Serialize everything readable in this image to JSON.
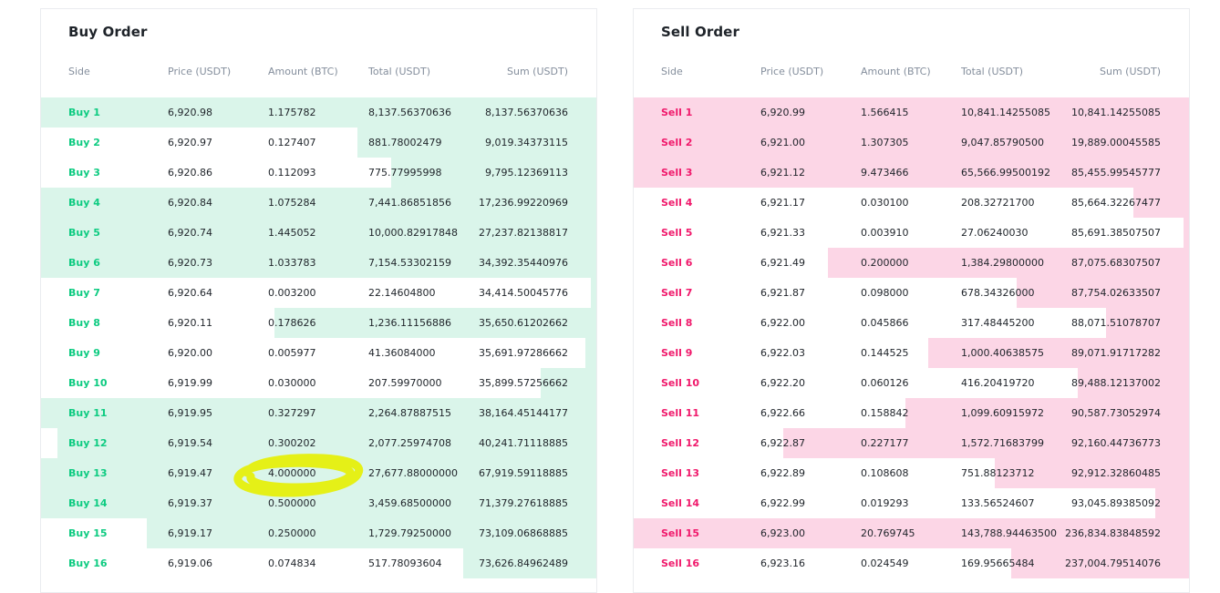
{
  "buy": {
    "title": "Buy Order",
    "headers": {
      "side": "Side",
      "price": "Price (USDT)",
      "amount": "Amount (BTC)",
      "total": "Total (USDT)",
      "sum": "Sum (USDT)"
    },
    "rows": [
      {
        "side": "Buy 1",
        "price": "6,920.98",
        "amount": "1.175782",
        "total": "8,137.56370636",
        "sum": "8,137.56370636",
        "depth": 1.0
      },
      {
        "side": "Buy 2",
        "price": "6,920.97",
        "amount": "0.127407",
        "total": "881.78002479",
        "sum": "9,019.34373115",
        "depth": 0.43
      },
      {
        "side": "Buy 3",
        "price": "6,920.86",
        "amount": "0.112093",
        "total": "775.77995998",
        "sum": "9,795.12369113",
        "depth": 0.37
      },
      {
        "side": "Buy 4",
        "price": "6,920.84",
        "amount": "1.075284",
        "total": "7,441.86851856",
        "sum": "17,236.99220969",
        "depth": 1.0
      },
      {
        "side": "Buy 5",
        "price": "6,920.74",
        "amount": "1.445052",
        "total": "10,000.82917848",
        "sum": "27,237.82138817",
        "depth": 1.0
      },
      {
        "side": "Buy 6",
        "price": "6,920.73",
        "amount": "1.033783",
        "total": "7,154.53302159",
        "sum": "34,392.35440976",
        "depth": 1.0
      },
      {
        "side": "Buy 7",
        "price": "6,920.64",
        "amount": "0.003200",
        "total": "22.14604800",
        "sum": "34,414.50045776",
        "depth": 0.01
      },
      {
        "side": "Buy 8",
        "price": "6,920.11",
        "amount": "0.178626",
        "total": "1,236.11156886",
        "sum": "35,650.61202662",
        "depth": 0.58
      },
      {
        "side": "Buy 9",
        "price": "6,920.00",
        "amount": "0.005977",
        "total": "41.36084000",
        "sum": "35,691.97286662",
        "depth": 0.02
      },
      {
        "side": "Buy 10",
        "price": "6,919.99",
        "amount": "0.030000",
        "total": "207.59970000",
        "sum": "35,899.57256662",
        "depth": 0.1
      },
      {
        "side": "Buy 11",
        "price": "6,919.95",
        "amount": "0.327297",
        "total": "2,264.87887515",
        "sum": "38,164.45144177",
        "depth": 1.0
      },
      {
        "side": "Buy 12",
        "price": "6,919.54",
        "amount": "0.300202",
        "total": "2,077.25974708",
        "sum": "40,241.71118885",
        "depth": 0.97
      },
      {
        "side": "Buy 13",
        "price": "6,919.47",
        "amount": "4.000000",
        "total": "27,677.88000000",
        "sum": "67,919.59118885",
        "depth": 1.0
      },
      {
        "side": "Buy 14",
        "price": "6,919.37",
        "amount": "0.500000",
        "total": "3,459.68500000",
        "sum": "71,379.27618885",
        "depth": 1.0
      },
      {
        "side": "Buy 15",
        "price": "6,919.17",
        "amount": "0.250000",
        "total": "1,729.79250000",
        "sum": "73,109.06868885",
        "depth": 0.81
      },
      {
        "side": "Buy 16",
        "price": "6,919.06",
        "amount": "0.074834",
        "total": "517.78093604",
        "sum": "73,626.84962489",
        "depth": 0.24
      }
    ]
  },
  "sell": {
    "title": "Sell Order",
    "headers": {
      "side": "Side",
      "price": "Price (USDT)",
      "amount": "Amount (BTC)",
      "total": "Total (USDT)",
      "sum": "Sum (USDT)"
    },
    "rows": [
      {
        "side": "Sell 1",
        "price": "6,920.99",
        "amount": "1.566415",
        "total": "10,841.14255085",
        "sum": "10,841.14255085",
        "depth": 1.0
      },
      {
        "side": "Sell 2",
        "price": "6,921.00",
        "amount": "1.307305",
        "total": "9,047.85790500",
        "sum": "19,889.00045585",
        "depth": 1.0
      },
      {
        "side": "Sell 3",
        "price": "6,921.12",
        "amount": "9.473466",
        "total": "65,566.99500192",
        "sum": "85,455.99545777",
        "depth": 1.0
      },
      {
        "side": "Sell 4",
        "price": "6,921.17",
        "amount": "0.030100",
        "total": "208.32721700",
        "sum": "85,664.32267477",
        "depth": 0.1
      },
      {
        "side": "Sell 5",
        "price": "6,921.33",
        "amount": "0.003910",
        "total": "27.06240030",
        "sum": "85,691.38507507",
        "depth": 0.01
      },
      {
        "side": "Sell 6",
        "price": "6,921.49",
        "amount": "0.200000",
        "total": "1,384.29800000",
        "sum": "87,075.68307507",
        "depth": 0.65
      },
      {
        "side": "Sell 7",
        "price": "6,921.87",
        "amount": "0.098000",
        "total": "678.34326000",
        "sum": "87,754.02633507",
        "depth": 0.31
      },
      {
        "side": "Sell 8",
        "price": "6,922.00",
        "amount": "0.045866",
        "total": "317.48445200",
        "sum": "88,071.51078707",
        "depth": 0.15
      },
      {
        "side": "Sell 9",
        "price": "6,922.03",
        "amount": "0.144525",
        "total": "1,000.40638575",
        "sum": "89,071.91717282",
        "depth": 0.47
      },
      {
        "side": "Sell 10",
        "price": "6,922.20",
        "amount": "0.060126",
        "total": "416.20419720",
        "sum": "89,488.12137002",
        "depth": 0.2
      },
      {
        "side": "Sell 11",
        "price": "6,922.66",
        "amount": "0.158842",
        "total": "1,099.60915972",
        "sum": "90,587.73052974",
        "depth": 0.51
      },
      {
        "side": "Sell 12",
        "price": "6,922.87",
        "amount": "0.227177",
        "total": "1,572.71683799",
        "sum": "92,160.44736773",
        "depth": 0.73
      },
      {
        "side": "Sell 13",
        "price": "6,922.89",
        "amount": "0.108608",
        "total": "751.88123712",
        "sum": "92,912.32860485",
        "depth": 0.35
      },
      {
        "side": "Sell 14",
        "price": "6,922.99",
        "amount": "0.019293",
        "total": "133.56524607",
        "sum": "93,045.89385092",
        "depth": 0.06
      },
      {
        "side": "Sell 15",
        "price": "6,923.00",
        "amount": "20.769745",
        "total": "143,788.94463500",
        "sum": "236,834.83848592",
        "depth": 1.0
      },
      {
        "side": "Sell 16",
        "price": "6,923.16",
        "amount": "0.024549",
        "total": "169.95665484",
        "sum": "237,004.79514076",
        "depth": 0.32
      }
    ]
  },
  "colors": {
    "buy_text": "#0ecb81",
    "buy_bar": "#daf5ea",
    "sell_text": "#f0196b",
    "sell_bar": "#fcd6e6",
    "highlight": "#e6f000"
  }
}
